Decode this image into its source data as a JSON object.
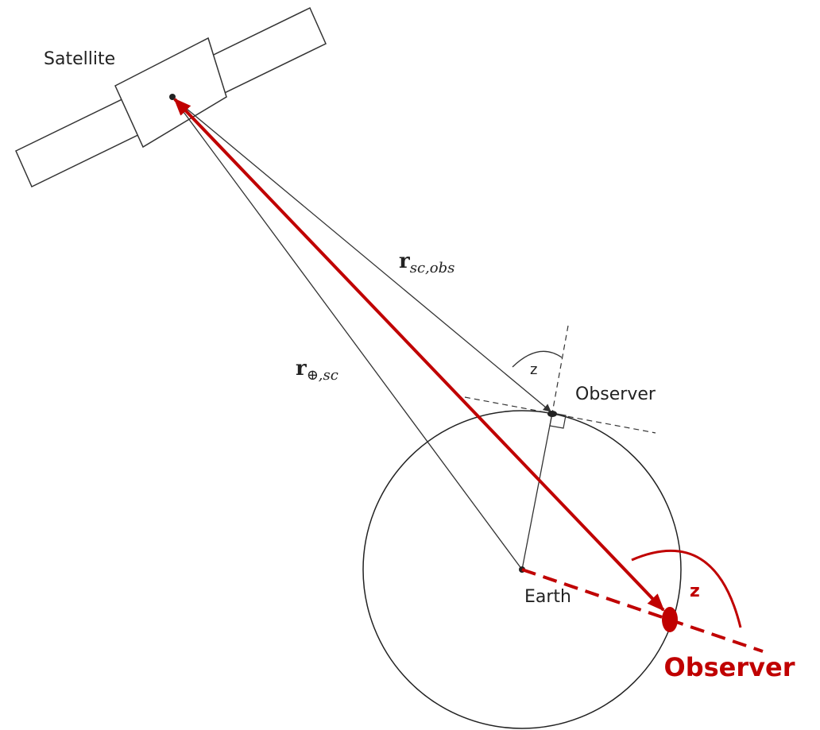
{
  "labels": {
    "satellite": "Satellite",
    "r_sc_obs": {
      "main": "r",
      "sub": "sc,obs"
    },
    "r_earth_sc": {
      "main": "r",
      "sub": "⊕,sc"
    },
    "z": "z",
    "observer": "Observer",
    "earth": "Earth",
    "z_red": "z",
    "observer_red": "Observer"
  }
}
